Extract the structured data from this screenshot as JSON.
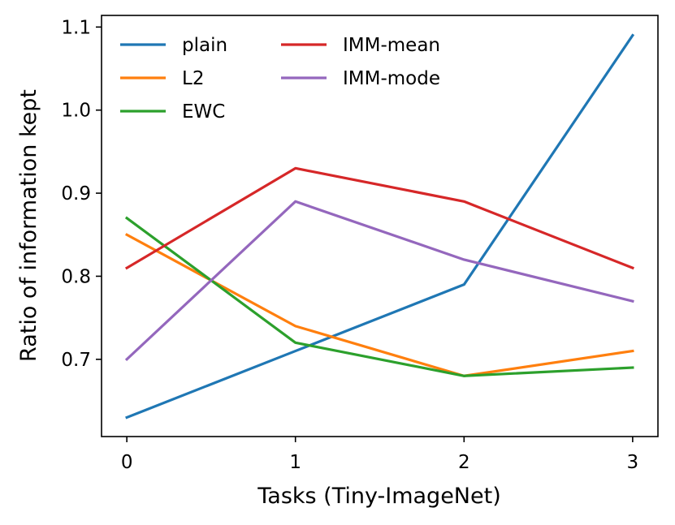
{
  "chart_data": {
    "type": "line",
    "title": "",
    "xlabel": "Tasks (Tiny-ImageNet)",
    "ylabel": "Ratio of information kept",
    "x": [
      0,
      1,
      2,
      3
    ],
    "x_ticks": [
      "0",
      "1",
      "2",
      "3"
    ],
    "y_ticks": [
      "0.7",
      "0.8",
      "0.9",
      "1.0",
      "1.1"
    ],
    "xlim": [
      -0.15,
      3.15
    ],
    "ylim": [
      0.607,
      1.114
    ],
    "grid": false,
    "legend_position": "top-left",
    "legend_columns": 2,
    "series": [
      {
        "name": "plain",
        "color": "#1f77b4",
        "values": [
          0.63,
          0.71,
          0.79,
          1.09
        ]
      },
      {
        "name": "L2",
        "color": "#ff7f0e",
        "values": [
          0.85,
          0.74,
          0.68,
          0.71
        ]
      },
      {
        "name": "EWC",
        "color": "#2ca02c",
        "values": [
          0.87,
          0.72,
          0.68,
          0.69
        ]
      },
      {
        "name": "IMM-mean",
        "color": "#d62728",
        "values": [
          0.81,
          0.93,
          0.89,
          0.81
        ]
      },
      {
        "name": "IMM-mode",
        "color": "#9467bd",
        "values": [
          0.7,
          0.89,
          0.82,
          0.77
        ]
      }
    ]
  }
}
